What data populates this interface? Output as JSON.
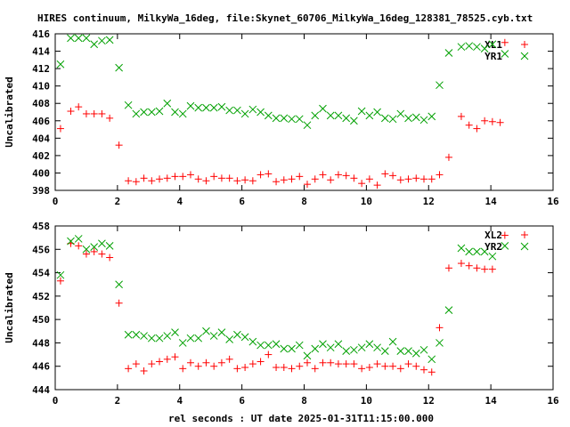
{
  "title": "HIRES continuum, MilkyWa_16deg, file:Skynet_60706_MilkyWa_16deg_128381_78525.cyb.txt",
  "xlabel": "rel seconds : UT date 2025-01-31T11:15:00.000",
  "colors": {
    "red_series": "#ff0000",
    "green_series": "#00a000",
    "frame": "#000000",
    "background": "#ffffff"
  },
  "chart_data": [
    {
      "type": "scatter",
      "ylabel": "Uncalibrated",
      "xlim": [
        0,
        16
      ],
      "ylim": [
        398,
        416
      ],
      "xticks": [
        0,
        2,
        4,
        6,
        8,
        10,
        12,
        14,
        16
      ],
      "yticks": [
        398,
        400,
        402,
        404,
        406,
        408,
        410,
        412,
        414,
        416
      ],
      "legend_position": "top-right",
      "series": [
        {
          "name": "XL1",
          "marker": "plus",
          "color": "#ff0000",
          "points": [
            [
              0.17,
              405.1
            ],
            [
              0.5,
              407.1
            ],
            [
              0.75,
              407.6
            ],
            [
              1.0,
              406.8
            ],
            [
              1.25,
              406.8
            ],
            [
              1.5,
              406.8
            ],
            [
              1.75,
              406.3
            ],
            [
              2.05,
              403.2
            ],
            [
              2.35,
              399.1
            ],
            [
              2.6,
              399.0
            ],
            [
              2.85,
              399.4
            ],
            [
              3.1,
              399.1
            ],
            [
              3.35,
              399.3
            ],
            [
              3.6,
              399.4
            ],
            [
              3.85,
              399.6
            ],
            [
              4.1,
              399.6
            ],
            [
              4.35,
              399.8
            ],
            [
              4.6,
              399.3
            ],
            [
              4.85,
              399.1
            ],
            [
              5.1,
              399.6
            ],
            [
              5.35,
              399.4
            ],
            [
              5.6,
              399.4
            ],
            [
              5.85,
              399.1
            ],
            [
              6.1,
              399.2
            ],
            [
              6.35,
              399.1
            ],
            [
              6.6,
              399.8
            ],
            [
              6.85,
              399.9
            ],
            [
              7.1,
              399.0
            ],
            [
              7.35,
              399.2
            ],
            [
              7.6,
              399.3
            ],
            [
              7.85,
              399.6
            ],
            [
              8.1,
              398.7
            ],
            [
              8.35,
              399.3
            ],
            [
              8.6,
              399.8
            ],
            [
              8.85,
              399.2
            ],
            [
              9.1,
              399.8
            ],
            [
              9.35,
              399.7
            ],
            [
              9.6,
              399.4
            ],
            [
              9.85,
              398.8
            ],
            [
              10.1,
              399.3
            ],
            [
              10.35,
              398.6
            ],
            [
              10.6,
              399.9
            ],
            [
              10.85,
              399.7
            ],
            [
              11.1,
              399.2
            ],
            [
              11.35,
              399.3
            ],
            [
              11.6,
              399.4
            ],
            [
              11.85,
              399.3
            ],
            [
              12.1,
              399.3
            ],
            [
              12.35,
              399.8
            ],
            [
              12.65,
              401.8
            ],
            [
              13.05,
              406.5
            ],
            [
              13.3,
              405.5
            ],
            [
              13.55,
              405.1
            ],
            [
              13.8,
              406.0
            ],
            [
              14.05,
              405.9
            ],
            [
              14.3,
              405.8
            ],
            [
              14.45,
              415.0
            ]
          ]
        },
        {
          "name": "YR1",
          "marker": "cross",
          "color": "#00a000",
          "points": [
            [
              0.17,
              412.5
            ],
            [
              0.5,
              415.5
            ],
            [
              0.75,
              415.5
            ],
            [
              1.0,
              415.5
            ],
            [
              1.25,
              414.8
            ],
            [
              1.5,
              415.2
            ],
            [
              1.75,
              415.3
            ],
            [
              2.05,
              412.1
            ],
            [
              2.35,
              407.8
            ],
            [
              2.6,
              406.8
            ],
            [
              2.85,
              407.0
            ],
            [
              3.1,
              407.0
            ],
            [
              3.35,
              407.1
            ],
            [
              3.6,
              408.0
            ],
            [
              3.85,
              407.0
            ],
            [
              4.1,
              406.8
            ],
            [
              4.35,
              407.7
            ],
            [
              4.6,
              407.5
            ],
            [
              4.85,
              407.5
            ],
            [
              5.1,
              407.5
            ],
            [
              5.35,
              407.6
            ],
            [
              5.6,
              407.2
            ],
            [
              5.85,
              407.2
            ],
            [
              6.1,
              406.8
            ],
            [
              6.35,
              407.3
            ],
            [
              6.6,
              407.0
            ],
            [
              6.85,
              406.6
            ],
            [
              7.1,
              406.3
            ],
            [
              7.35,
              406.3
            ],
            [
              7.6,
              406.2
            ],
            [
              7.85,
              406.2
            ],
            [
              8.1,
              405.5
            ],
            [
              8.35,
              406.6
            ],
            [
              8.6,
              407.4
            ],
            [
              8.85,
              406.6
            ],
            [
              9.1,
              406.6
            ],
            [
              9.35,
              406.3
            ],
            [
              9.6,
              406.0
            ],
            [
              9.85,
              407.1
            ],
            [
              10.1,
              406.6
            ],
            [
              10.35,
              407.0
            ],
            [
              10.6,
              406.3
            ],
            [
              10.85,
              406.2
            ],
            [
              11.1,
              406.8
            ],
            [
              11.35,
              406.3
            ],
            [
              11.6,
              406.4
            ],
            [
              11.85,
              406.1
            ],
            [
              12.1,
              406.5
            ],
            [
              12.35,
              410.1
            ],
            [
              12.65,
              413.8
            ],
            [
              13.05,
              414.5
            ],
            [
              13.3,
              414.6
            ],
            [
              13.55,
              414.5
            ],
            [
              13.8,
              414.3
            ],
            [
              14.05,
              414.8
            ],
            [
              14.45,
              413.7
            ]
          ]
        }
      ]
    },
    {
      "type": "scatter",
      "ylabel": "Uncalibrated",
      "xlim": [
        0,
        16
      ],
      "ylim": [
        444,
        458
      ],
      "xticks": [
        0,
        2,
        4,
        6,
        8,
        10,
        12,
        14,
        16
      ],
      "yticks": [
        444,
        446,
        448,
        450,
        452,
        454,
        456,
        458
      ],
      "legend_position": "top-right",
      "series": [
        {
          "name": "XL2",
          "marker": "plus",
          "color": "#ff0000",
          "points": [
            [
              0.17,
              453.3
            ],
            [
              0.5,
              456.5
            ],
            [
              0.75,
              456.3
            ],
            [
              1.0,
              455.6
            ],
            [
              1.25,
              455.8
            ],
            [
              1.5,
              455.6
            ],
            [
              1.75,
              455.3
            ],
            [
              2.05,
              451.4
            ],
            [
              2.35,
              445.8
            ],
            [
              2.6,
              446.2
            ],
            [
              2.85,
              445.6
            ],
            [
              3.1,
              446.2
            ],
            [
              3.35,
              446.4
            ],
            [
              3.6,
              446.6
            ],
            [
              3.85,
              446.8
            ],
            [
              4.1,
              445.8
            ],
            [
              4.35,
              446.3
            ],
            [
              4.6,
              446.0
            ],
            [
              4.85,
              446.3
            ],
            [
              5.1,
              446.0
            ],
            [
              5.35,
              446.3
            ],
            [
              5.6,
              446.6
            ],
            [
              5.85,
              445.8
            ],
            [
              6.1,
              445.9
            ],
            [
              6.35,
              446.2
            ],
            [
              6.6,
              446.4
            ],
            [
              6.85,
              447.0
            ],
            [
              7.1,
              445.9
            ],
            [
              7.35,
              445.9
            ],
            [
              7.6,
              445.8
            ],
            [
              7.85,
              446.0
            ],
            [
              8.1,
              446.3
            ],
            [
              8.35,
              445.8
            ],
            [
              8.6,
              446.3
            ],
            [
              8.85,
              446.3
            ],
            [
              9.1,
              446.2
            ],
            [
              9.35,
              446.2
            ],
            [
              9.6,
              446.2
            ],
            [
              9.85,
              445.8
            ],
            [
              10.1,
              445.9
            ],
            [
              10.35,
              446.2
            ],
            [
              10.6,
              446.0
            ],
            [
              10.85,
              446.0
            ],
            [
              11.1,
              445.8
            ],
            [
              11.35,
              446.2
            ],
            [
              11.6,
              446.0
            ],
            [
              11.85,
              445.7
            ],
            [
              12.1,
              445.5
            ],
            [
              12.35,
              449.3
            ],
            [
              12.65,
              454.4
            ],
            [
              13.05,
              454.8
            ],
            [
              13.3,
              454.6
            ],
            [
              13.55,
              454.4
            ],
            [
              13.8,
              454.3
            ],
            [
              14.05,
              454.3
            ],
            [
              14.45,
              457.2
            ]
          ]
        },
        {
          "name": "YR2",
          "marker": "cross",
          "color": "#00a000",
          "points": [
            [
              0.17,
              453.8
            ],
            [
              0.5,
              456.7
            ],
            [
              0.75,
              456.9
            ],
            [
              1.0,
              456.0
            ],
            [
              1.25,
              456.2
            ],
            [
              1.5,
              456.5
            ],
            [
              1.75,
              456.3
            ],
            [
              2.05,
              453.0
            ],
            [
              2.35,
              448.7
            ],
            [
              2.6,
              448.7
            ],
            [
              2.85,
              448.6
            ],
            [
              3.1,
              448.4
            ],
            [
              3.35,
              448.4
            ],
            [
              3.6,
              448.6
            ],
            [
              3.85,
              448.9
            ],
            [
              4.1,
              448.0
            ],
            [
              4.35,
              448.4
            ],
            [
              4.6,
              448.4
            ],
            [
              4.85,
              449.0
            ],
            [
              5.1,
              448.6
            ],
            [
              5.35,
              448.9
            ],
            [
              5.6,
              448.3
            ],
            [
              5.85,
              448.7
            ],
            [
              6.1,
              448.5
            ],
            [
              6.35,
              448.1
            ],
            [
              6.6,
              447.8
            ],
            [
              6.85,
              447.8
            ],
            [
              7.1,
              447.9
            ],
            [
              7.35,
              447.5
            ],
            [
              7.6,
              447.5
            ],
            [
              7.85,
              447.8
            ],
            [
              8.1,
              446.9
            ],
            [
              8.35,
              447.5
            ],
            [
              8.6,
              447.9
            ],
            [
              8.85,
              447.6
            ],
            [
              9.1,
              447.9
            ],
            [
              9.35,
              447.3
            ],
            [
              9.6,
              447.4
            ],
            [
              9.85,
              447.6
            ],
            [
              10.1,
              447.9
            ],
            [
              10.35,
              447.6
            ],
            [
              10.6,
              447.3
            ],
            [
              10.85,
              448.1
            ],
            [
              11.1,
              447.3
            ],
            [
              11.35,
              447.3
            ],
            [
              11.6,
              447.1
            ],
            [
              11.85,
              447.4
            ],
            [
              12.1,
              446.6
            ],
            [
              12.35,
              448.0
            ],
            [
              12.65,
              450.8
            ],
            [
              13.05,
              456.1
            ],
            [
              13.3,
              455.8
            ],
            [
              13.55,
              455.8
            ],
            [
              13.8,
              455.8
            ],
            [
              14.05,
              455.4
            ],
            [
              14.45,
              456.3
            ]
          ]
        }
      ]
    }
  ]
}
